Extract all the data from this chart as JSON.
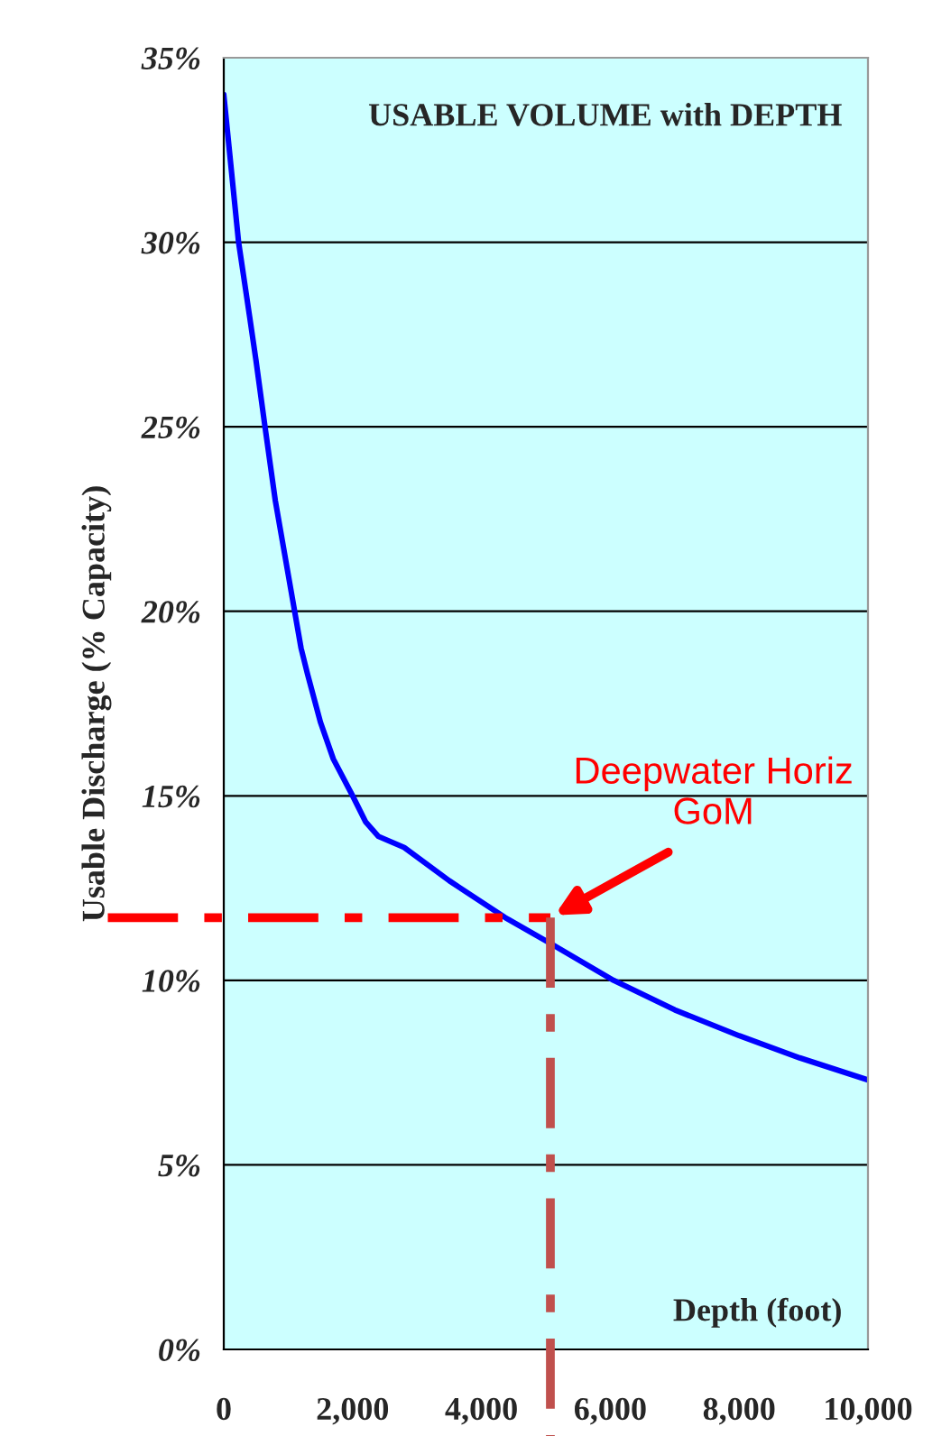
{
  "chart_data": {
    "type": "line",
    "title": "USABLE VOLUME with DEPTH",
    "xlabel": "Depth (foot)",
    "ylabel": "Usable Discharge (% Capacity)",
    "x": [
      0,
      230,
      400,
      500,
      640,
      800,
      1000,
      1200,
      1300,
      1500,
      1700,
      2000,
      2200,
      2400,
      2800,
      3500,
      4370,
      5070,
      6050,
      7000,
      8000,
      8940,
      10000
    ],
    "series": [
      {
        "color": "#0000ff",
        "values": [
          34,
          30,
          28,
          26.8,
          25,
          23,
          21,
          19,
          18.3,
          17,
          16,
          15,
          14.3,
          13.9,
          13.6,
          12.7,
          11.7,
          11.0,
          10.0,
          9.2,
          8.5,
          7.9,
          7.3
        ]
      }
    ],
    "xlim": [
      0,
      10000
    ],
    "ylim": [
      0,
      35
    ],
    "xticks": [
      0,
      {
        "value": 2000,
        "label": "2,000"
      },
      {
        "value": 4000,
        "label": "4,000"
      },
      {
        "value": 6000,
        "label": "6,000"
      },
      {
        "value": 8000,
        "label": "8,000"
      },
      {
        "value": 10000,
        "label": "10,000"
      }
    ],
    "yticks": [
      {
        "value": 0,
        "label": "0%"
      },
      {
        "value": 5,
        "label": "5%"
      },
      {
        "value": 10,
        "label": "10%"
      },
      {
        "value": 15,
        "label": "15%"
      },
      {
        "value": 20,
        "label": "20%"
      },
      {
        "value": 25,
        "label": "25%"
      },
      {
        "value": 30,
        "label": "30%"
      },
      {
        "value": 35,
        "label": "35%"
      }
    ],
    "grid": "y",
    "marker": "none",
    "line_style": "solid",
    "ref_lines": [
      {
        "axis": "y",
        "value": 11.7,
        "color": "#ff0000",
        "line_style": "dashdot"
      },
      {
        "axis": "x",
        "value": 5070,
        "color": "#c0504d",
        "line_style": "dashdot"
      }
    ],
    "annotations": [
      "Deepwater Horiz\nGoM"
    ]
  }
}
